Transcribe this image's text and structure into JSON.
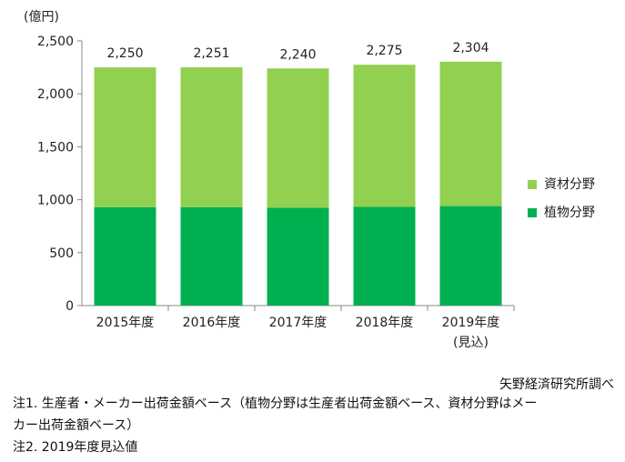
{
  "chart_data": {
    "type": "bar",
    "stacked": true,
    "unit_label": "(億円)",
    "categories": [
      "2015年度",
      "2016年度",
      "2017年度",
      "2018年度",
      "2019年度"
    ],
    "category_sublabels": [
      "",
      "",
      "",
      "",
      "(見込)"
    ],
    "series": [
      {
        "name": "植物分野",
        "color": "#00b050",
        "values": [
          930,
          930,
          925,
          932,
          940
        ]
      },
      {
        "name": "資材分野",
        "color": "#92d050",
        "values": [
          1320,
          1321,
          1315,
          1343,
          1364
        ]
      }
    ],
    "totals": [
      2250,
      2251,
      2240,
      2275,
      2304
    ],
    "total_labels": [
      "2,250",
      "2,251",
      "2,240",
      "2,275",
      "2,304"
    ],
    "ylim": [
      0,
      2500
    ],
    "yticks": [
      0,
      500,
      1000,
      1500,
      2000,
      2500
    ],
    "ytick_labels": [
      "0",
      "500",
      "1,000",
      "1,500",
      "2,000",
      "2,500"
    ],
    "grid": false,
    "legend": "right",
    "legend_order": [
      "資材分野",
      "植物分野"
    ]
  },
  "source": "矢野経済研究所調べ",
  "notes": [
    "注1. 生産者・メーカー出荷金額ベース（植物分野は生産者出荷金額ベース、資材分野はメー",
    "カー出荷金額ベース）",
    "注2. 2019年度見込値"
  ]
}
